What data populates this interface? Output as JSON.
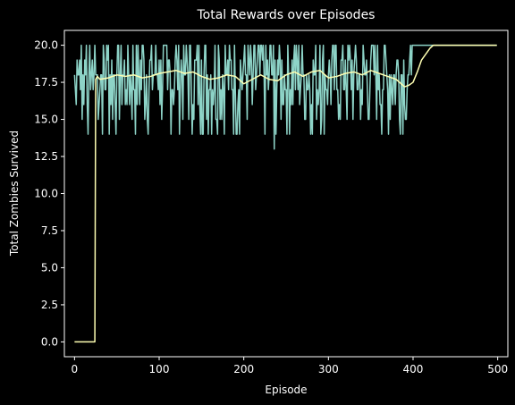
{
  "chart_data": {
    "type": "line",
    "title": "Total Rewards over Episodes",
    "xlabel": "Episode",
    "ylabel": "Total Zombies Survived",
    "xlim": [
      -12,
      512
    ],
    "ylim": [
      -1,
      21
    ],
    "xticks": [
      0,
      100,
      200,
      300,
      400,
      500
    ],
    "xtick_labels": [
      "0",
      "100",
      "200",
      "300",
      "400",
      "500"
    ],
    "yticks": [
      0,
      2.5,
      5,
      7.5,
      10,
      12.5,
      15,
      17.5,
      20
    ],
    "ytick_labels": [
      "0.0",
      "2.5",
      "5.0",
      "7.5",
      "10.0",
      "12.5",
      "15.0",
      "17.5",
      "20.0"
    ],
    "grid": false,
    "series": [
      {
        "role": "raw",
        "color": "#8dd3c7",
        "noise_seed": 7,
        "x": [
          0,
          1,
          2,
          3,
          4,
          5,
          6,
          7,
          8,
          9,
          10,
          11,
          12,
          13,
          14,
          15,
          16,
          17,
          18,
          19,
          20,
          21,
          22,
          23,
          24,
          25,
          30,
          40,
          50,
          60,
          80,
          100,
          110,
          120,
          130,
          140,
          150,
          160,
          170,
          180,
          190,
          200,
          210,
          220,
          230,
          236,
          240,
          250,
          260,
          270,
          280,
          290,
          300,
          310,
          320,
          330,
          340,
          350,
          360,
          370,
          380,
          390,
          395,
          398,
          400,
          401,
          410,
          420,
          430,
          440,
          450,
          460,
          470,
          480,
          490,
          499
        ],
        "y": [
          18,
          17,
          16,
          19,
          18,
          18,
          19,
          17,
          20,
          15,
          18,
          16,
          19,
          18,
          20,
          16,
          14,
          18,
          20,
          17,
          18,
          19,
          17,
          18,
          20,
          18,
          17,
          20,
          18,
          16,
          20,
          19,
          17,
          20,
          18,
          16,
          19,
          17,
          20,
          18,
          17,
          19,
          16,
          20,
          18,
          13,
          19,
          17,
          20,
          18,
          16,
          20,
          18,
          17,
          19,
          18,
          16,
          19,
          18,
          17,
          18,
          16,
          18,
          18,
          20,
          20,
          20,
          20,
          20,
          20,
          20,
          20,
          20,
          20,
          20,
          20
        ]
      },
      {
        "role": "moving-average",
        "color": "#ffffb3",
        "x": [
          0,
          10,
          24,
          25,
          27,
          30,
          40,
          50,
          60,
          70,
          80,
          90,
          100,
          110,
          120,
          130,
          140,
          150,
          160,
          170,
          180,
          190,
          200,
          210,
          220,
          230,
          240,
          250,
          260,
          270,
          280,
          290,
          300,
          310,
          320,
          330,
          340,
          350,
          360,
          370,
          380,
          390,
          395,
          400,
          405,
          410,
          415,
          420,
          424,
          430,
          450,
          470,
          499
        ],
        "y": [
          0,
          0,
          0,
          17.7,
          17.9,
          17.7,
          17.8,
          18,
          17.9,
          18,
          17.8,
          17.9,
          18.1,
          18.2,
          18.3,
          18.1,
          18.2,
          17.9,
          17.7,
          17.8,
          18,
          17.9,
          17.4,
          17.7,
          18,
          17.7,
          17.6,
          18,
          18.2,
          17.9,
          18.2,
          18.3,
          17.8,
          17.9,
          18.1,
          18.2,
          18,
          18.3,
          18.1,
          17.9,
          17.7,
          17.2,
          17.3,
          17.5,
          18.2,
          19,
          19.4,
          19.8,
          20,
          20,
          20,
          20,
          20
        ]
      }
    ]
  }
}
